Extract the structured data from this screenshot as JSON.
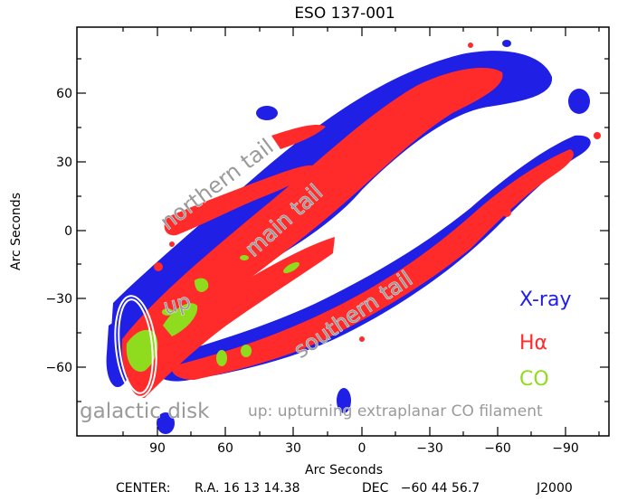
{
  "title": "ESO 137-001",
  "x_axis": {
    "label": "Arc Seconds",
    "ticks": [
      "90",
      "60",
      "30",
      "0",
      "−30",
      "−60",
      "−90"
    ]
  },
  "y_axis": {
    "label": "Arc Seconds",
    "ticks": [
      "60",
      "30",
      "0",
      "−30",
      "−60"
    ]
  },
  "footer": {
    "center_label": "CENTER:",
    "ra": "R.A. 16 13 14.38",
    "dec": "DEC   −60 44 56.7",
    "epoch": "J2000"
  },
  "legend": [
    {
      "label": "X-ray",
      "color": "#1f1fe6"
    },
    {
      "label": "Hα",
      "color": "#ff2a2a"
    },
    {
      "label": "CO",
      "color": "#8fdc1e"
    }
  ],
  "annotations": {
    "northern_tail": "northern tail",
    "main_tail": "main tail",
    "southern_tail": "southern tail",
    "up": "up",
    "galactic_disk": "galactic disk",
    "up_note": "up: upturning extraplanar CO filament"
  },
  "colors": {
    "xray": "#1f1fe6",
    "halpha": "#ff2a2a",
    "co": "#8fdc1e",
    "text_overlay": "#9a9a9a"
  }
}
